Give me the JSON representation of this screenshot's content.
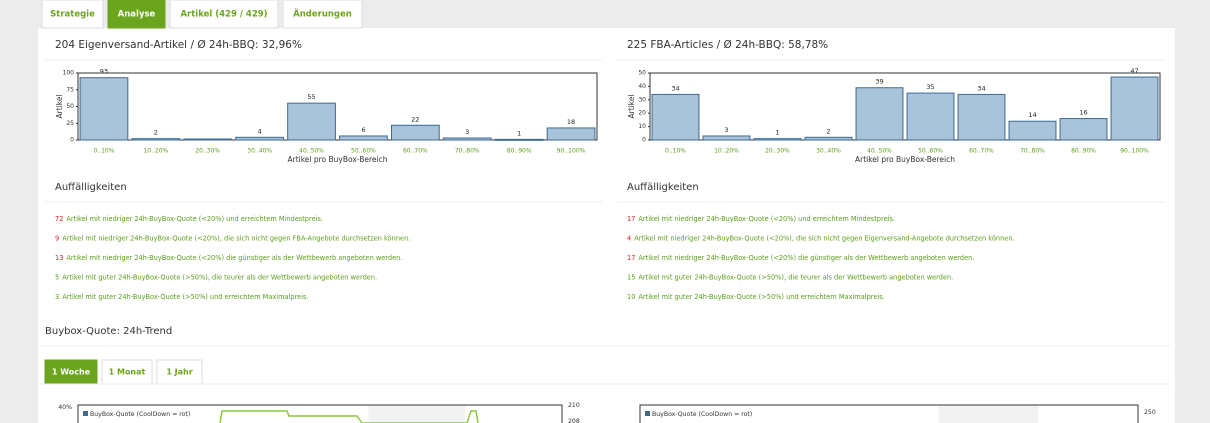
{
  "tabs": [
    "Strategie",
    "Analyse",
    "Artikel (429 / 429)",
    "Änderungen"
  ],
  "active_tab": 1,
  "panels": [
    {
      "title": "204 Eigenversand-Artikel / Ø 24h-BBQ: 32,96%",
      "chart": {
        "type": "bar",
        "categories": [
          "0..10%",
          "10..20%",
          "20..30%",
          "30..40%",
          "40..50%",
          "50..60%",
          "60..70%",
          "70..80%",
          "80..90%",
          "90..100%"
        ],
        "values": [
          93,
          2,
          0,
          4,
          55,
          6,
          22,
          3,
          1,
          18
        ],
        "ylim": [
          0,
          100
        ],
        "yticks": [
          0,
          25,
          50,
          75,
          100
        ],
        "xlabel": "Artikel pro BuyBox-Bereich",
        "ylabel": "Artikel",
        "color": "#a9c3da"
      },
      "notes_title": "Auffälligkeiten",
      "notes": [
        {
          "count": 72,
          "color": "#d22",
          "text": "Artikel mit niedriger 24h-BuyBox-Quote (<20%) und erreichtem Mindestpreis."
        },
        {
          "count": 9,
          "color": "#d22",
          "text": "Artikel mit niedriger 24h-BuyBox-Quote (<20%), die sich nicht gegen FBA-Angebote durchsetzen können."
        },
        {
          "count": 13,
          "color": "#d22",
          "text": "Artikel mit niedriger 24h-BuyBox-Quote (<20%) die günstiger als der Wettbewerb angeboten werden."
        },
        {
          "count": 5,
          "color": "#5a9e1a",
          "text": "Artikel mit guter 24h-BuyBox-Quote (>50%), die teurer als der Wettbewerb angeboten werden."
        },
        {
          "count": 3,
          "color": "#5a9e1a",
          "text": "Artikel mit guter 24h-BuyBox-Quote (>50%) und erreichtem Maximalpreis."
        }
      ]
    },
    {
      "title": "225 FBA-Articles / Ø 24h-BBQ: 58,78%",
      "chart": {
        "type": "bar",
        "categories": [
          "0..10%",
          "10..20%",
          "20..30%",
          "30..40%",
          "40..50%",
          "50..60%",
          "60..70%",
          "70..80%",
          "80..90%",
          "90..100%"
        ],
        "values": [
          34,
          3,
          1,
          2,
          39,
          35,
          34,
          14,
          16,
          47
        ],
        "ylim": [
          0,
          50
        ],
        "yticks": [
          0,
          10,
          20,
          30,
          40,
          50
        ],
        "xlabel": "Artikel pro BuyBox-Bereich",
        "ylabel": "Artikel",
        "color": "#a9c3da"
      },
      "notes_title": "Auffälligkeiten",
      "notes": [
        {
          "count": 17,
          "color": "#d22",
          "text": "Artikel mit niedriger 24h-BuyBox-Quote (<20%) und erreichtem Mindestpreis."
        },
        {
          "count": 4,
          "color": "#d22",
          "text": "Artikel mit niedriger 24h-BuyBox-Quote (<20%), die sich nicht gegen Eigenversand-Angebote durchsetzen können."
        },
        {
          "count": 17,
          "color": "#d22",
          "text": "Artikel mit niedriger 24h-BuyBox-Quote (<20%) die günstiger als der Wettbewerb angeboten werden."
        },
        {
          "count": 15,
          "color": "#5a9e1a",
          "text": "Artikel mit guter 24h-BuyBox-Quote (>50%), die teurer als der Wettbewerb angeboten werden."
        },
        {
          "count": 10,
          "color": "#5a9e1a",
          "text": "Artikel mit guter 24h-BuyBox-Quote (>50%) und erreichtem Maximalpreis."
        }
      ]
    }
  ],
  "trend": {
    "title": "Buybox-Quote: 24h-Trend",
    "tabs": [
      "1 Woche",
      "1 Monat",
      "1 Jahr"
    ],
    "active_tab": 0,
    "charts": [
      {
        "legend": "BuyBox-Quote (CoolDown = rot)",
        "left_labels": [
          "40%"
        ],
        "right_labels": [
          "210",
          "208"
        ]
      },
      {
        "legend": "BuyBox-Quote (CoolDown = rot)",
        "left_labels": [],
        "right_labels": [
          "250"
        ]
      }
    ]
  }
}
